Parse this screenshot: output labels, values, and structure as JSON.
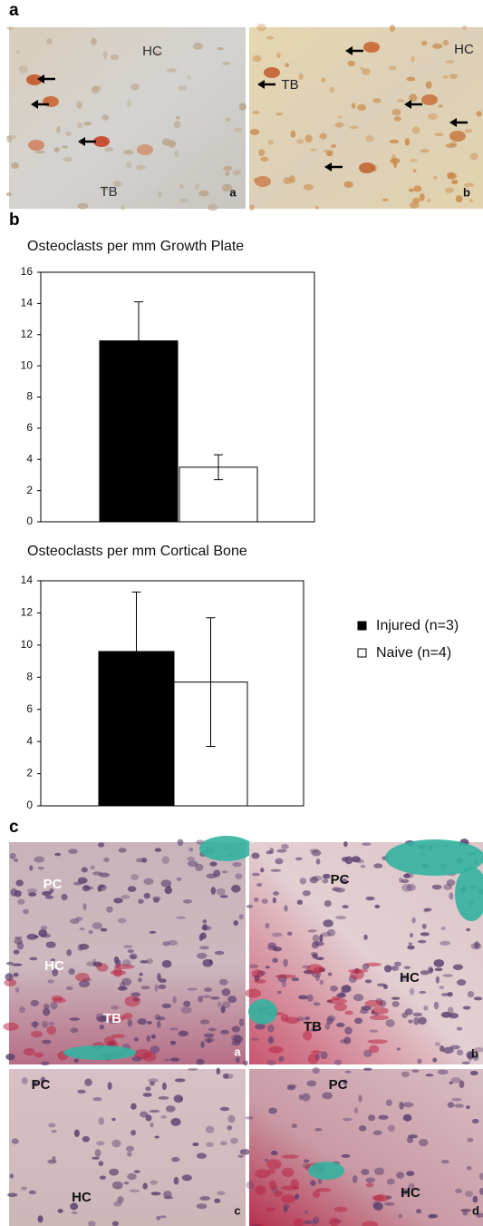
{
  "figure": {
    "panel_labels": [
      "a",
      "b",
      "c"
    ],
    "panel_a": [
      {
        "tags": [
          "HC",
          "TB"
        ],
        "corner": "a"
      },
      {
        "tags": [
          "HC",
          "TB"
        ],
        "corner": "b"
      }
    ],
    "panel_c": [
      {
        "tags": [
          "PC",
          "HC",
          "TB"
        ],
        "corner": "a"
      },
      {
        "tags": [
          "PC",
          "HC",
          "TB"
        ],
        "corner": "b"
      },
      {
        "tags": [
          "PC",
          "HC"
        ],
        "corner": "c"
      },
      {
        "tags": [
          "PC",
          "HC"
        ],
        "corner": "d"
      }
    ]
  },
  "chart_data": [
    {
      "type": "bar",
      "title": "Osteoclasts per mm Growth Plate",
      "categories": [
        null
      ],
      "series": [
        {
          "name": "Injured (n=3)",
          "color": "#000000",
          "values": [
            11.6
          ],
          "errors": [
            2.5
          ]
        },
        {
          "name": "Naive (n=4)",
          "color": "#ffffff",
          "values": [
            3.5
          ],
          "errors": [
            0.8
          ]
        }
      ],
      "ylim": [
        0,
        16
      ],
      "yticks": [
        0,
        2,
        4,
        6,
        8,
        10,
        12,
        14,
        16
      ],
      "grid": false,
      "legend": "right"
    },
    {
      "type": "bar",
      "title": "Osteoclasts per mm Cortical Bone",
      "categories": [
        null
      ],
      "series": [
        {
          "color": "#000000",
          "values": [
            9.6
          ],
          "errors": [
            3.7
          ]
        },
        {
          "color": "#ffffff",
          "values": [
            7.7
          ],
          "errors": [
            4.0
          ]
        }
      ],
      "ylim": [
        0,
        14
      ],
      "yticks": [
        0,
        2,
        4,
        6,
        8,
        10,
        12,
        14
      ],
      "grid": false
    }
  ]
}
